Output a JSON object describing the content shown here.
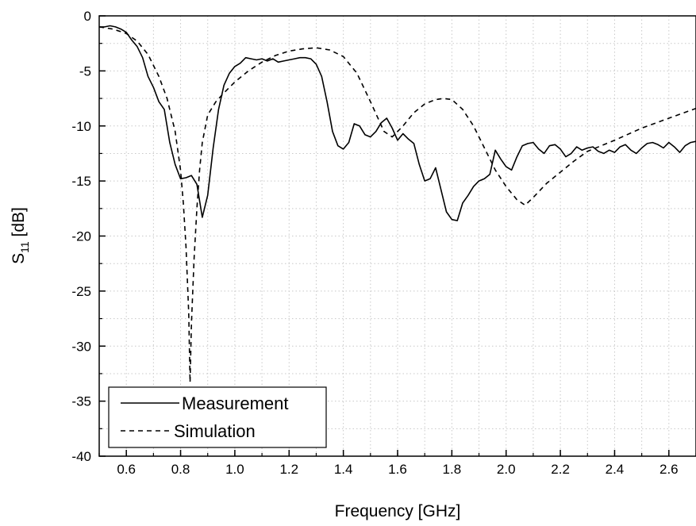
{
  "chart_data": {
    "type": "line",
    "xlabel": "Frequency [GHz]",
    "ylabel": {
      "main": "S",
      "sub": "11",
      "unit": " [dB]"
    },
    "xlim": [
      0.5,
      2.7
    ],
    "ylim": [
      -40,
      0
    ],
    "xticks": [
      0.6,
      0.8,
      1.0,
      1.2,
      1.4,
      1.6,
      1.8,
      2.0,
      2.2,
      2.4,
      2.6
    ],
    "xtick_labels": [
      "0.6",
      "0.8",
      "1.0",
      "1.2",
      "1.4",
      "1.6",
      "1.8",
      "2.0",
      "2.2",
      "2.4",
      "2.6"
    ],
    "yticks": [
      0,
      -5,
      -10,
      -15,
      -20,
      -25,
      -30,
      -35,
      -40
    ],
    "ytick_labels": [
      "0",
      "-5",
      "-10",
      "-15",
      "-20",
      "-25",
      "-30",
      "-35",
      "-40"
    ],
    "grid": true,
    "legend_position": "bottom-left",
    "series": [
      {
        "name": "Measurement",
        "style": "solid",
        "color": "#000000",
        "x": [
          0.5,
          0.52,
          0.54,
          0.56,
          0.58,
          0.6,
          0.62,
          0.64,
          0.66,
          0.68,
          0.7,
          0.72,
          0.74,
          0.76,
          0.78,
          0.8,
          0.82,
          0.84,
          0.86,
          0.88,
          0.9,
          0.92,
          0.94,
          0.96,
          0.98,
          1.0,
          1.02,
          1.04,
          1.06,
          1.08,
          1.1,
          1.12,
          1.14,
          1.16,
          1.18,
          1.2,
          1.22,
          1.24,
          1.26,
          1.28,
          1.3,
          1.32,
          1.34,
          1.36,
          1.38,
          1.4,
          1.42,
          1.44,
          1.46,
          1.48,
          1.5,
          1.52,
          1.54,
          1.56,
          1.58,
          1.6,
          1.62,
          1.64,
          1.66,
          1.68,
          1.7,
          1.72,
          1.74,
          1.76,
          1.78,
          1.8,
          1.82,
          1.84,
          1.86,
          1.88,
          1.9,
          1.92,
          1.94,
          1.96,
          1.98,
          2.0,
          2.02,
          2.04,
          2.06,
          2.08,
          2.1,
          2.12,
          2.14,
          2.16,
          2.18,
          2.2,
          2.22,
          2.24,
          2.26,
          2.28,
          2.3,
          2.32,
          2.34,
          2.36,
          2.38,
          2.4,
          2.42,
          2.44,
          2.46,
          2.48,
          2.5,
          2.52,
          2.54,
          2.56,
          2.58,
          2.6,
          2.62,
          2.64,
          2.66,
          2.68,
          2.7
        ],
        "y": [
          -1.0,
          -1.0,
          -0.9,
          -1.0,
          -1.2,
          -1.5,
          -2.2,
          -2.8,
          -3.8,
          -5.5,
          -6.5,
          -7.8,
          -8.5,
          -11.5,
          -13.5,
          -14.8,
          -14.7,
          -14.5,
          -15.3,
          -18.3,
          -16.3,
          -12.0,
          -8.5,
          -6.3,
          -5.2,
          -4.6,
          -4.3,
          -3.8,
          -3.9,
          -4.0,
          -3.9,
          -4.1,
          -3.9,
          -4.2,
          -4.1,
          -4.0,
          -3.9,
          -3.8,
          -3.8,
          -3.9,
          -4.4,
          -5.5,
          -7.8,
          -10.5,
          -11.8,
          -12.1,
          -11.5,
          -9.8,
          -10.0,
          -10.8,
          -11.0,
          -10.5,
          -9.7,
          -9.3,
          -10.2,
          -11.3,
          -10.7,
          -11.2,
          -11.6,
          -13.5,
          -15.0,
          -14.8,
          -13.8,
          -15.8,
          -17.8,
          -18.5,
          -18.6,
          -17.0,
          -16.3,
          -15.5,
          -15.0,
          -14.8,
          -14.4,
          -12.2,
          -13.0,
          -13.7,
          -14.0,
          -12.8,
          -11.8,
          -11.6,
          -11.5,
          -12.1,
          -12.5,
          -11.8,
          -11.7,
          -12.1,
          -12.8,
          -12.5,
          -11.9,
          -12.2,
          -12.0,
          -11.9,
          -12.3,
          -12.5,
          -12.2,
          -12.4,
          -11.9,
          -11.7,
          -12.2,
          -12.5,
          -12.0,
          -11.6,
          -11.5,
          -11.7,
          -12.0,
          -11.5,
          -11.9,
          -12.4,
          -11.8,
          -11.5,
          -11.4
        ]
      },
      {
        "name": "Simulation",
        "style": "dashed",
        "color": "#000000",
        "x": [
          0.5,
          0.55,
          0.6,
          0.64,
          0.68,
          0.72,
          0.75,
          0.78,
          0.8,
          0.81,
          0.82,
          0.83,
          0.835,
          0.84,
          0.85,
          0.86,
          0.87,
          0.88,
          0.9,
          0.93,
          0.96,
          1.0,
          1.05,
          1.1,
          1.15,
          1.2,
          1.25,
          1.3,
          1.35,
          1.4,
          1.45,
          1.5,
          1.55,
          1.58,
          1.62,
          1.66,
          1.7,
          1.74,
          1.77,
          1.8,
          1.84,
          1.88,
          1.92,
          1.96,
          2.0,
          2.04,
          2.07,
          2.1,
          2.15,
          2.2,
          2.25,
          2.3,
          2.4,
          2.5,
          2.6,
          2.7
        ],
        "y": [
          -1.0,
          -1.2,
          -1.6,
          -2.3,
          -3.5,
          -5.5,
          -7.5,
          -10.5,
          -14.0,
          -17.0,
          -21.0,
          -27.0,
          -33.3,
          -28.0,
          -22.0,
          -17.5,
          -14.0,
          -11.5,
          -9.0,
          -7.8,
          -7.0,
          -6.0,
          -5.0,
          -4.2,
          -3.6,
          -3.2,
          -3.0,
          -2.9,
          -3.1,
          -3.7,
          -5.2,
          -7.8,
          -10.5,
          -11.0,
          -10.0,
          -8.8,
          -8.0,
          -7.6,
          -7.5,
          -7.6,
          -8.5,
          -10.0,
          -12.0,
          -14.0,
          -15.5,
          -16.7,
          -17.2,
          -16.5,
          -15.2,
          -14.2,
          -13.2,
          -12.3,
          -11.3,
          -10.2,
          -9.3,
          -8.4
        ]
      }
    ]
  }
}
